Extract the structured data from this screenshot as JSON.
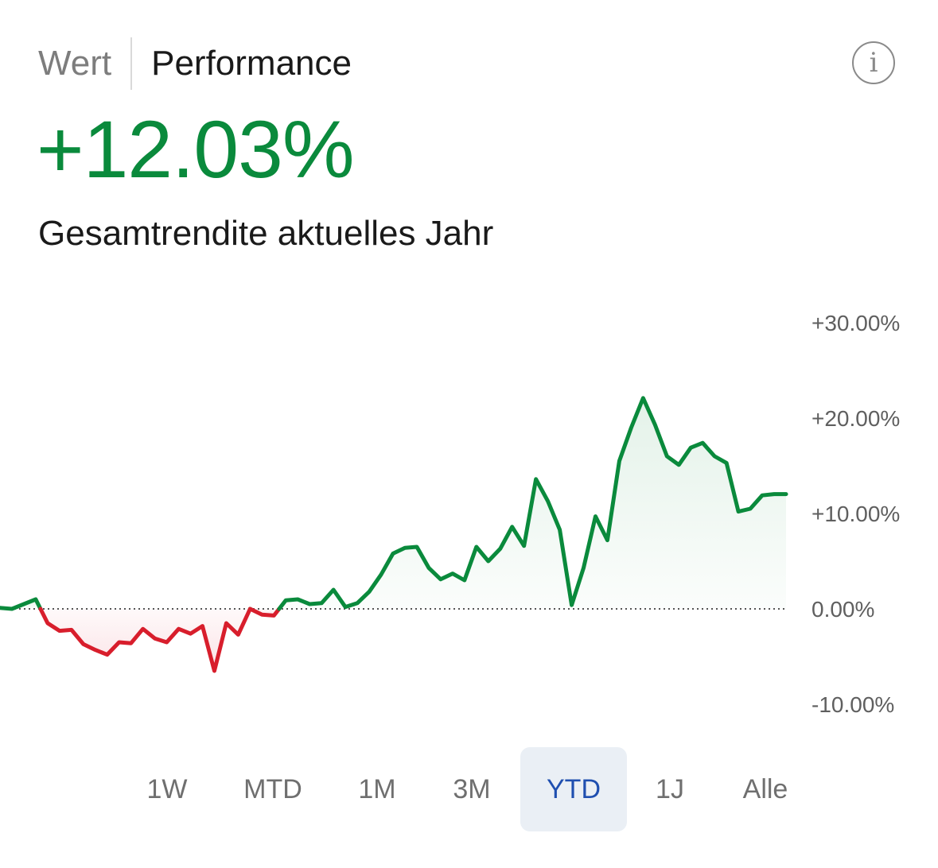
{
  "tabs": {
    "value_label": "Wert",
    "performance_label": "Performance"
  },
  "info_icon": {
    "name": "info-icon",
    "glyph": "i"
  },
  "summary": {
    "value": "+12.03%",
    "label": "Gesamtrendite aktuelles Jahr",
    "color": "#0a8a3c"
  },
  "chart_data": {
    "type": "area",
    "x": [
      0,
      1,
      2,
      3,
      4,
      5,
      6,
      7,
      8,
      9,
      10,
      11,
      12,
      13,
      14,
      15,
      16,
      17,
      18,
      19,
      20,
      21,
      22,
      23,
      24,
      25,
      26,
      27,
      28,
      29,
      30,
      31,
      32,
      33,
      34,
      35,
      36,
      37,
      38,
      39,
      40,
      41,
      42,
      43,
      44,
      45,
      46,
      47,
      48,
      49,
      50,
      51,
      52,
      53,
      54,
      55,
      56,
      57,
      58,
      59,
      60,
      61,
      62,
      63,
      64,
      65,
      66
    ],
    "y": [
      0.1,
      0.0,
      0.5,
      1.0,
      -1.5,
      -2.3,
      -2.2,
      -3.7,
      -4.3,
      -4.8,
      -3.5,
      -3.6,
      -2.1,
      -3.1,
      -3.5,
      -2.1,
      -2.6,
      -1.8,
      -6.5,
      -1.5,
      -2.7,
      0.0,
      -0.6,
      -0.7,
      0.9,
      1.0,
      0.5,
      0.6,
      2.0,
      0.2,
      0.6,
      1.8,
      3.6,
      5.8,
      6.4,
      6.5,
      4.3,
      3.1,
      3.7,
      3.0,
      6.5,
      5.0,
      6.3,
      8.6,
      6.6,
      13.6,
      11.3,
      8.3,
      0.4,
      4.3,
      9.7,
      7.2,
      15.5,
      19.0,
      22.1,
      19.3,
      16.0,
      15.1,
      16.9,
      17.4,
      16.0,
      15.3,
      10.2,
      10.5,
      11.9,
      12.03,
      12.03
    ],
    "yticks": [
      "+30.00%",
      "+20.00%",
      "+10.00%",
      "0.00%",
      "-10.00%"
    ],
    "ytick_values": [
      30,
      20,
      10,
      0,
      -10
    ],
    "ylim": [
      -10,
      30
    ],
    "baseline": 0,
    "positive_color": "#0a8a3c",
    "negative_color": "#d81e2c",
    "positive_fill": "#e4f2e9",
    "negative_fill": "#fbe3e6",
    "baseline_style": "dotted"
  },
  "ranges": [
    {
      "label": "1W",
      "active": false
    },
    {
      "label": "MTD",
      "active": false
    },
    {
      "label": "1M",
      "active": false
    },
    {
      "label": "3M",
      "active": false
    },
    {
      "label": "YTD",
      "active": true
    },
    {
      "label": "1J",
      "active": false
    },
    {
      "label": "Alle",
      "active": false
    }
  ]
}
